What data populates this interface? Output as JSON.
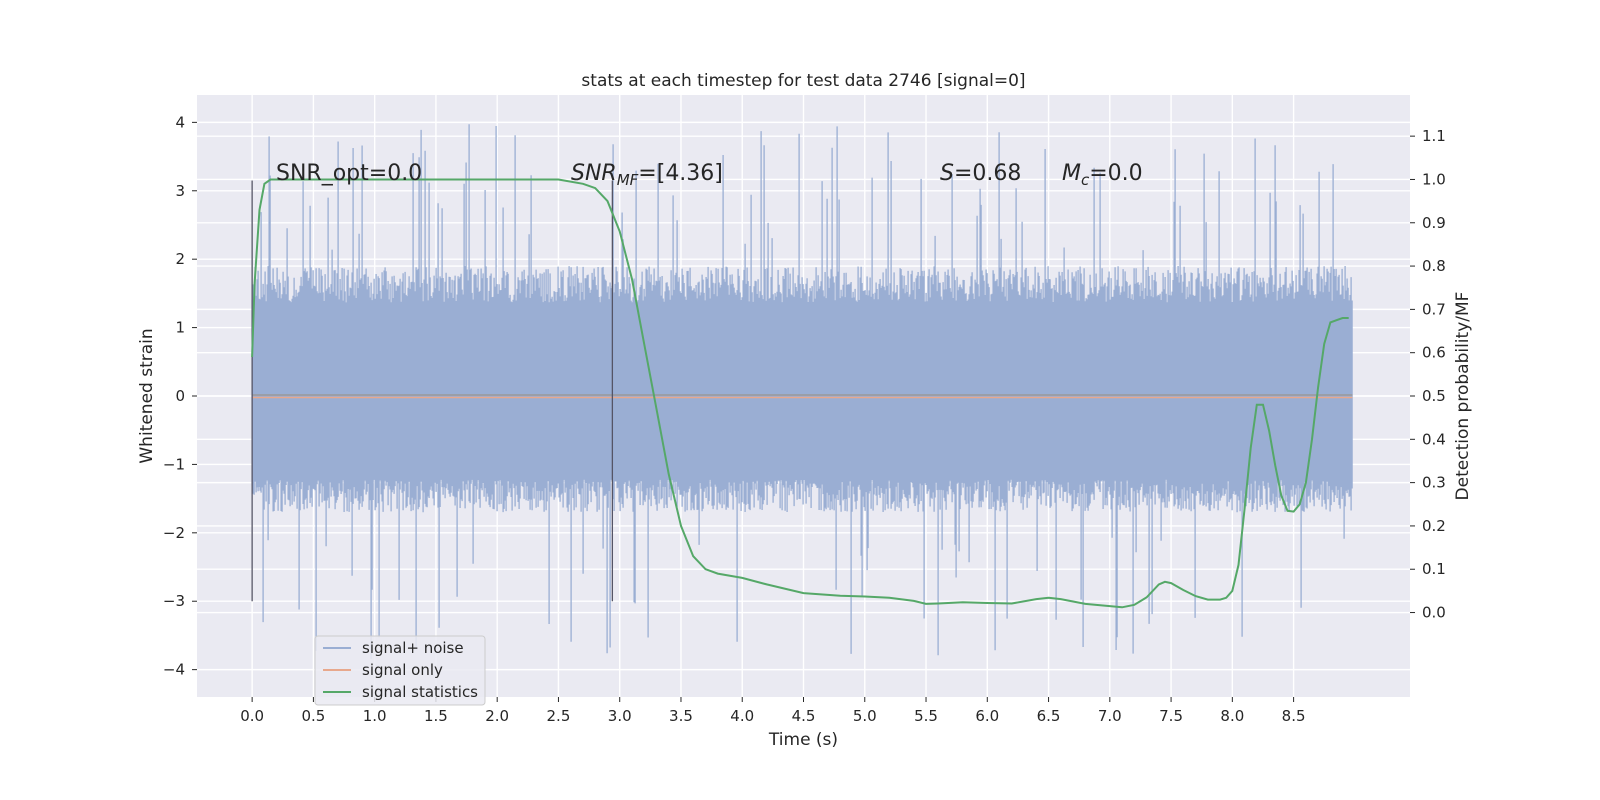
{
  "chart_data": {
    "type": "line",
    "title": "stats at each timestep for test data 2746 [signal=0]",
    "xlabel": "Time (s)",
    "ylabel": "Whitened strain",
    "ylabel_right": "Detection probability/MF",
    "xlim": [
      -0.45,
      9.45
    ],
    "ylim": [
      -4.4,
      4.4
    ],
    "ylim_right": [
      -0.195,
      1.195
    ],
    "x_ticks": [
      0.0,
      0.5,
      1.0,
      1.5,
      2.0,
      2.5,
      3.0,
      3.5,
      4.0,
      4.5,
      5.0,
      5.5,
      6.0,
      6.5,
      7.0,
      7.5,
      8.0,
      8.5
    ],
    "x_tick_labels": [
      "0.0",
      "0.5",
      "1.0",
      "1.5",
      "2.0",
      "2.5",
      "3.0",
      "3.5",
      "4.0",
      "4.5",
      "5.0",
      "5.5",
      "6.0",
      "6.5",
      "7.0",
      "7.5",
      "8.0",
      "8.5"
    ],
    "y_ticks": [
      4,
      3,
      2,
      1,
      0,
      -1,
      -2,
      -3,
      -4
    ],
    "y_tick_labels": [
      "4",
      "3",
      "2",
      "1",
      "0",
      "−1",
      "−2",
      "−3",
      "−4"
    ],
    "y_ticks_right": [
      1.1,
      1.0,
      0.9,
      0.8,
      0.7,
      0.6,
      0.5,
      0.4,
      0.3,
      0.2,
      0.1,
      0.0
    ],
    "y_tick_labels_right": [
      "1.1",
      "1.0",
      "0.9",
      "0.8",
      "0.7",
      "0.6",
      "0.5",
      "0.4",
      "0.3",
      "0.2",
      "0.1",
      "0.0"
    ],
    "grid": true,
    "legend_position": "lower-left",
    "annotations": {
      "snr_opt": "SNR_opt=0.0",
      "snr_mf_a": "SNR",
      "snr_mf_sub": "MF",
      "snr_mf_b": "=[4.36]",
      "s_var": "S",
      "s_val": "=0.68",
      "mc_var": "M",
      "mc_sub": "c",
      "mc_val": "=0.0"
    },
    "vlines": [
      {
        "x": 0.0,
        "ymin": -3.0,
        "ymax": 3.15
      },
      {
        "x": 2.94,
        "ymin": -3.0,
        "ymax": 3.15
      }
    ],
    "series": [
      {
        "name": "signal+ noise",
        "color": "#9aaed3",
        "x_range": [
          0.0,
          8.98
        ],
        "envelope": {
          "core_max": 1.9,
          "core_min": -1.7,
          "peak_max": 4.0,
          "peak_min": -3.85
        }
      },
      {
        "name": "signal only",
        "color": "#e8a88c",
        "x": [
          0.0,
          8.98
        ],
        "y": [
          0.0,
          0.0
        ]
      },
      {
        "name": "signal statistics",
        "color": "#55a868",
        "axis": "right",
        "x": [
          0.0,
          0.02,
          0.06,
          0.1,
          0.15,
          0.2,
          0.3,
          0.5,
          1.0,
          1.5,
          2.0,
          2.5,
          2.7,
          2.8,
          2.9,
          3.0,
          3.1,
          3.2,
          3.3,
          3.4,
          3.5,
          3.6,
          3.7,
          3.8,
          4.0,
          4.2,
          4.5,
          4.8,
          5.0,
          5.2,
          5.4,
          5.5,
          5.6,
          5.8,
          6.0,
          6.2,
          6.4,
          6.5,
          6.6,
          6.8,
          7.0,
          7.1,
          7.2,
          7.3,
          7.4,
          7.45,
          7.5,
          7.6,
          7.7,
          7.8,
          7.9,
          7.95,
          8.0,
          8.05,
          8.1,
          8.15,
          8.2,
          8.25,
          8.3,
          8.35,
          8.4,
          8.45,
          8.5,
          8.55,
          8.6,
          8.65,
          8.7,
          8.75,
          8.8,
          8.85,
          8.9,
          8.95
        ],
        "y": [
          0.59,
          0.76,
          0.93,
          0.99,
          1.0,
          1.0,
          1.0,
          1.0,
          1.0,
          1.0,
          1.0,
          1.0,
          0.99,
          0.98,
          0.95,
          0.88,
          0.77,
          0.62,
          0.47,
          0.32,
          0.2,
          0.13,
          0.1,
          0.09,
          0.08,
          0.065,
          0.045,
          0.039,
          0.037,
          0.034,
          0.027,
          0.02,
          0.021,
          0.024,
          0.022,
          0.021,
          0.031,
          0.034,
          0.031,
          0.02,
          0.015,
          0.012,
          0.018,
          0.035,
          0.065,
          0.071,
          0.068,
          0.052,
          0.038,
          0.03,
          0.03,
          0.034,
          0.05,
          0.11,
          0.24,
          0.38,
          0.48,
          0.48,
          0.42,
          0.34,
          0.27,
          0.235,
          0.233,
          0.25,
          0.3,
          0.4,
          0.52,
          0.62,
          0.67,
          0.675,
          0.68,
          0.68
        ]
      }
    ]
  }
}
